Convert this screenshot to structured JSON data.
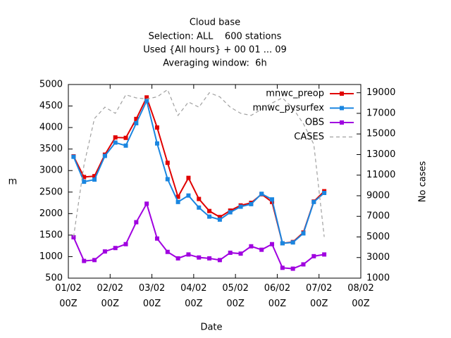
{
  "chart_data": {
    "type": "line",
    "title_lines": [
      "Cloud base",
      "Selection: ALL    600 stations",
      "Used {All hours} + 00 01 ... 09",
      "Averaging window:  6h"
    ],
    "x_label": "Date",
    "y_label": "m",
    "y2_label": "No cases",
    "x": [
      3,
      9,
      15,
      21,
      27,
      33,
      39,
      45,
      51,
      57,
      63,
      69,
      75,
      81,
      87,
      93,
      99,
      105,
      111,
      117,
      123,
      129,
      135,
      141,
      147
    ],
    "xlim": [
      0,
      168
    ],
    "xticks": [
      {
        "value": 0,
        "label": "01/02\n00Z"
      },
      {
        "value": 24,
        "label": "02/02\n00Z"
      },
      {
        "value": 48,
        "label": "03/02\n00Z"
      },
      {
        "value": 72,
        "label": "04/02\n00Z"
      },
      {
        "value": 96,
        "label": "05/02\n00Z"
      },
      {
        "value": 120,
        "label": "06/02\n00Z"
      },
      {
        "value": 144,
        "label": "07/02\n00Z"
      },
      {
        "value": 168,
        "label": "08/02\n00Z"
      }
    ],
    "ylim": [
      500,
      5000
    ],
    "yticks": [
      500,
      1000,
      1500,
      2000,
      2500,
      3000,
      3500,
      4000,
      4500,
      5000
    ],
    "y2lim": [
      1000,
      19800
    ],
    "y2ticks": [
      1000,
      3000,
      5000,
      7000,
      9000,
      11000,
      13000,
      15000,
      17000,
      19000
    ],
    "legend": "top-right",
    "series": [
      {
        "name": "mnwc_preop",
        "color": "#e00000",
        "marker": "square",
        "values": [
          3330,
          2850,
          2870,
          3370,
          3770,
          3760,
          4200,
          4700,
          4000,
          3180,
          2390,
          2830,
          2340,
          2060,
          1920,
          2070,
          2190,
          2250,
          2450,
          2270,
          1310,
          1340,
          1560,
          2280,
          2520
        ]
      },
      {
        "name": "mnwc_pysurfex",
        "color": "#1a86e0",
        "marker": "square",
        "values": [
          3320,
          2740,
          2790,
          3340,
          3650,
          3580,
          4100,
          4620,
          3630,
          2800,
          2270,
          2420,
          2140,
          1930,
          1860,
          2030,
          2160,
          2220,
          2460,
          2330,
          1310,
          1330,
          1540,
          2270,
          2480
        ]
      },
      {
        "name": "OBS",
        "color": "#a000e0",
        "marker": "square",
        "values": [
          1450,
          900,
          920,
          1120,
          1200,
          1290,
          1800,
          2230,
          1420,
          1110,
          960,
          1050,
          980,
          960,
          920,
          1090,
          1070,
          1240,
          1160,
          1290,
          740,
          720,
          820,
          1010,
          1050
        ]
      },
      {
        "name": "CASES",
        "color": "#a0a0a0",
        "axis": "y2",
        "dashed": true,
        "values": [
          5000,
          12000,
          16500,
          17600,
          17000,
          18800,
          18500,
          18400,
          18600,
          19300,
          16800,
          18100,
          17600,
          19000,
          18600,
          17600,
          17000,
          16800,
          17400,
          18000,
          18500,
          17500,
          16000,
          14000,
          5000
        ]
      }
    ]
  }
}
